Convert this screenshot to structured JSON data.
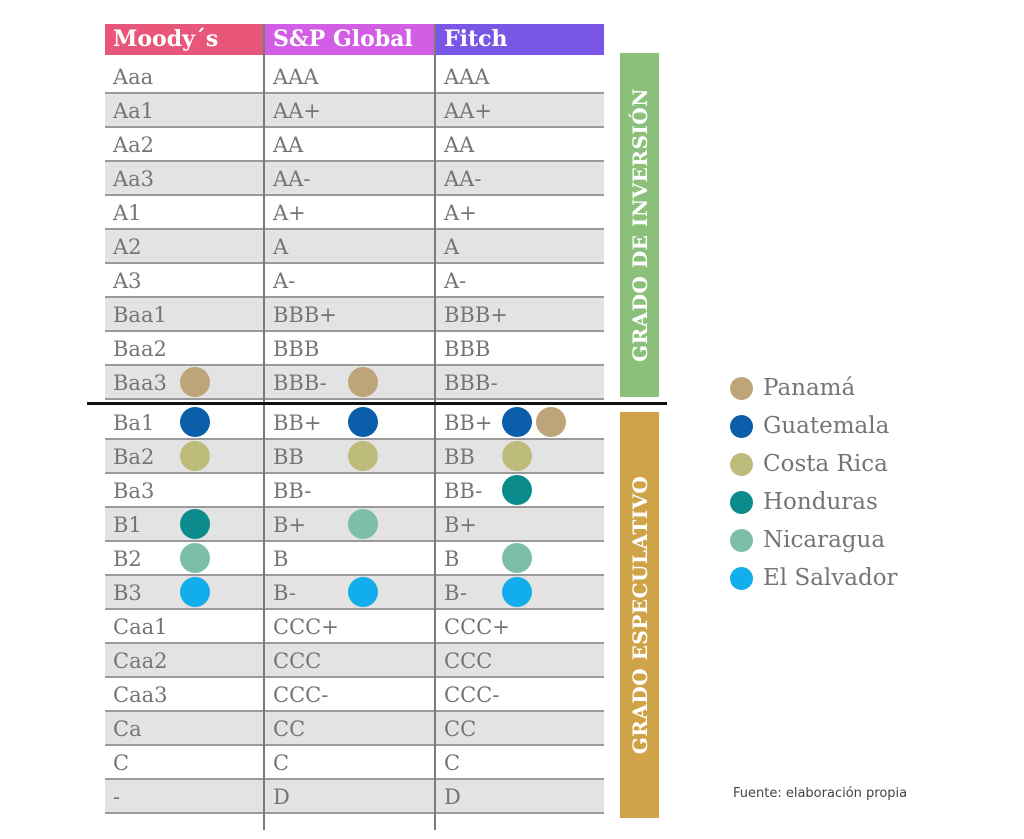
{
  "headers": [
    {
      "label": "Moody´s",
      "color": "#e8567a"
    },
    {
      "label": "S&P Global",
      "color": "#d35ee6"
    },
    {
      "label": "Fitch",
      "color": "#7a56e6"
    }
  ],
  "countries": {
    "panama": {
      "label": "Panamá",
      "color": "#bea479"
    },
    "guatemala": {
      "label": "Guatemala",
      "color": "#0b5ea9"
    },
    "costa_rica": {
      "label": "Costa Rica",
      "color": "#bebc7b"
    },
    "honduras": {
      "label": "Honduras",
      "color": "#0b8b8c"
    },
    "nicaragua": {
      "label": "Nicaragua",
      "color": "#7dbeaa"
    },
    "el_salvador": {
      "label": "El Salvador",
      "color": "#12adeb"
    }
  },
  "legend_order": [
    "panama",
    "guatemala",
    "costa_rica",
    "honduras",
    "nicaragua",
    "el_salvador"
  ],
  "bands": {
    "investment": {
      "label": "GRADO DE INVERSIÓN",
      "color": "#8bc07a"
    },
    "speculative": {
      "label": "GRADO ESPECULATIVO",
      "color": "#cfa449"
    }
  },
  "investment_rows": [
    {
      "moodys": "Aaa",
      "sp": "AAA",
      "fitch": "AAA"
    },
    {
      "moodys": "Aa1",
      "sp": "AA+",
      "fitch": "AA+"
    },
    {
      "moodys": "Aa2",
      "sp": "AA",
      "fitch": "AA"
    },
    {
      "moodys": "Aa3",
      "sp": "AA-",
      "fitch": "AA-"
    },
    {
      "moodys": "A1",
      "sp": "A+",
      "fitch": "A+"
    },
    {
      "moodys": "A2",
      "sp": "A",
      "fitch": "A"
    },
    {
      "moodys": "A3",
      "sp": "A-",
      "fitch": "A-"
    },
    {
      "moodys": "Baa1",
      "sp": "BBB+",
      "fitch": "BBB+"
    },
    {
      "moodys": "Baa2",
      "sp": "BBB",
      "fitch": "BBB"
    },
    {
      "moodys": "Baa3",
      "sp": "BBB-",
      "fitch": "BBB-",
      "dots": {
        "moodys": [
          "panama"
        ],
        "sp": [
          "panama"
        ]
      }
    }
  ],
  "speculative_rows": [
    {
      "moodys": "Ba1",
      "sp": "BB+",
      "fitch": "BB+",
      "dots": {
        "moodys": [
          "guatemala"
        ],
        "sp": [
          "guatemala"
        ],
        "fitch": [
          "guatemala",
          "panama"
        ]
      }
    },
    {
      "moodys": "Ba2",
      "sp": "BB",
      "fitch": "BB",
      "dots": {
        "moodys": [
          "costa_rica"
        ],
        "sp": [
          "costa_rica"
        ],
        "fitch": [
          "costa_rica"
        ]
      }
    },
    {
      "moodys": "Ba3",
      "sp": "BB-",
      "fitch": "BB-",
      "dots": {
        "fitch": [
          "honduras"
        ]
      }
    },
    {
      "moodys": "B1",
      "sp": "B+",
      "fitch": "B+",
      "dots": {
        "moodys": [
          "honduras"
        ],
        "sp": [
          "nicaragua"
        ]
      }
    },
    {
      "moodys": "B2",
      "sp": "B",
      "fitch": "B",
      "dots": {
        "moodys": [
          "nicaragua"
        ],
        "fitch": [
          "nicaragua"
        ]
      }
    },
    {
      "moodys": "B3",
      "sp": "B-",
      "fitch": "B-",
      "dots": {
        "moodys": [
          "el_salvador"
        ],
        "sp": [
          "el_salvador"
        ],
        "fitch": [
          "el_salvador"
        ]
      }
    },
    {
      "moodys": "Caa1",
      "sp": "CCC+",
      "fitch": "CCC+"
    },
    {
      "moodys": "Caa2",
      "sp": "CCC",
      "fitch": "CCC"
    },
    {
      "moodys": "Caa3",
      "sp": "CCC-",
      "fitch": "CCC-"
    },
    {
      "moodys": "Ca",
      "sp": "CC",
      "fitch": "CC"
    },
    {
      "moodys": "C",
      "sp": "C",
      "fitch": "C"
    },
    {
      "moodys": "-",
      "sp": "D",
      "fitch": "D"
    }
  ],
  "source": "Fuente: elaboración propia"
}
